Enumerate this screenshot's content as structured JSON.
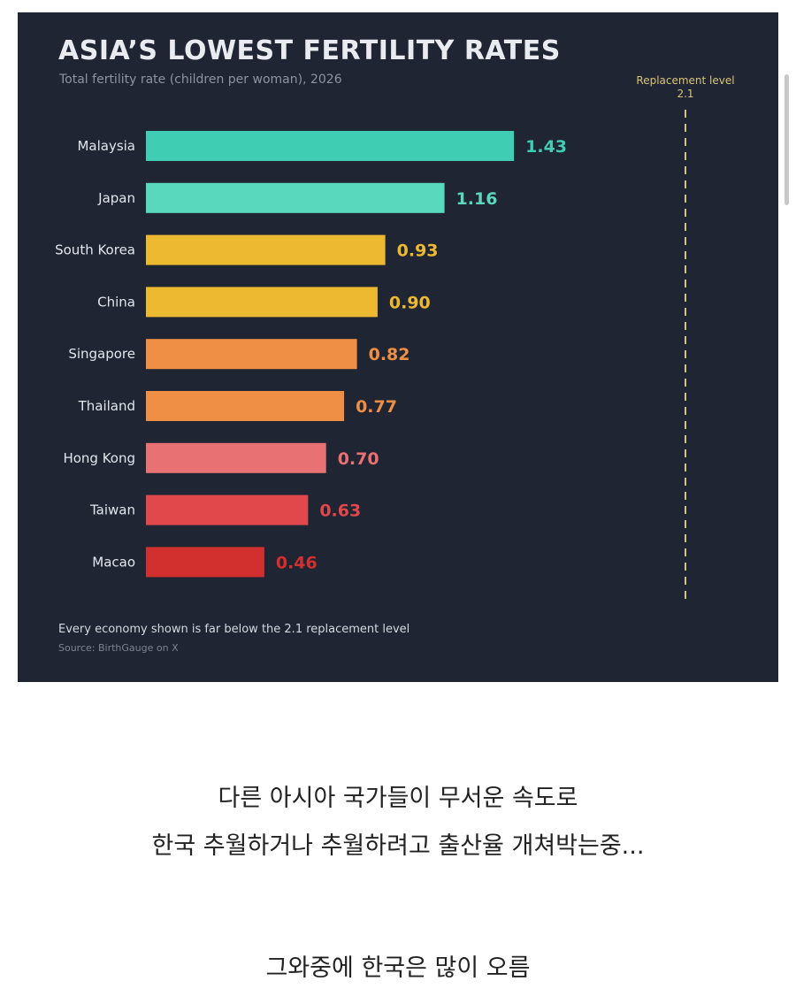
{
  "chart_data": {
    "type": "bar",
    "orientation": "horizontal",
    "title": "ASIA’S LOWEST FERTILITY RATES",
    "subtitle": "Total fertility rate (children per woman), 2026",
    "categories": [
      "Malaysia",
      "Japan",
      "South Korea",
      "China",
      "Singapore",
      "Thailand",
      "Hong Kong",
      "Taiwan",
      "Macao"
    ],
    "values": [
      1.43,
      1.16,
      0.93,
      0.9,
      0.82,
      0.77,
      0.7,
      0.63,
      0.46
    ],
    "value_labels": [
      "1.43",
      "1.16",
      "0.93",
      "0.90",
      "0.82",
      "0.77",
      "0.70",
      "0.63",
      "0.46"
    ],
    "bar_colors": [
      "#3fcdb3",
      "#5ad8be",
      "#ecb930",
      "#ecb930",
      "#ee8f45",
      "#ee8f45",
      "#e87174",
      "#e0484c",
      "#d2302f"
    ],
    "reference_line": {
      "value": 2.1,
      "label": "Replacement level",
      "value_label": "2.1",
      "color": "#d9c37a"
    },
    "footnote": "Every economy shown is far below the 2.1 replacement level",
    "source": "Source: BirthGauge on X",
    "background": "#1f2532",
    "grid": false
  },
  "caption": {
    "line1": "다른 아시아 국가들이 무서운 속도로",
    "line2": "한국 추월하거나 추월하려고 출산율 개쳐박는중...",
    "line3": "그와중에 한국은 많이 오름"
  }
}
